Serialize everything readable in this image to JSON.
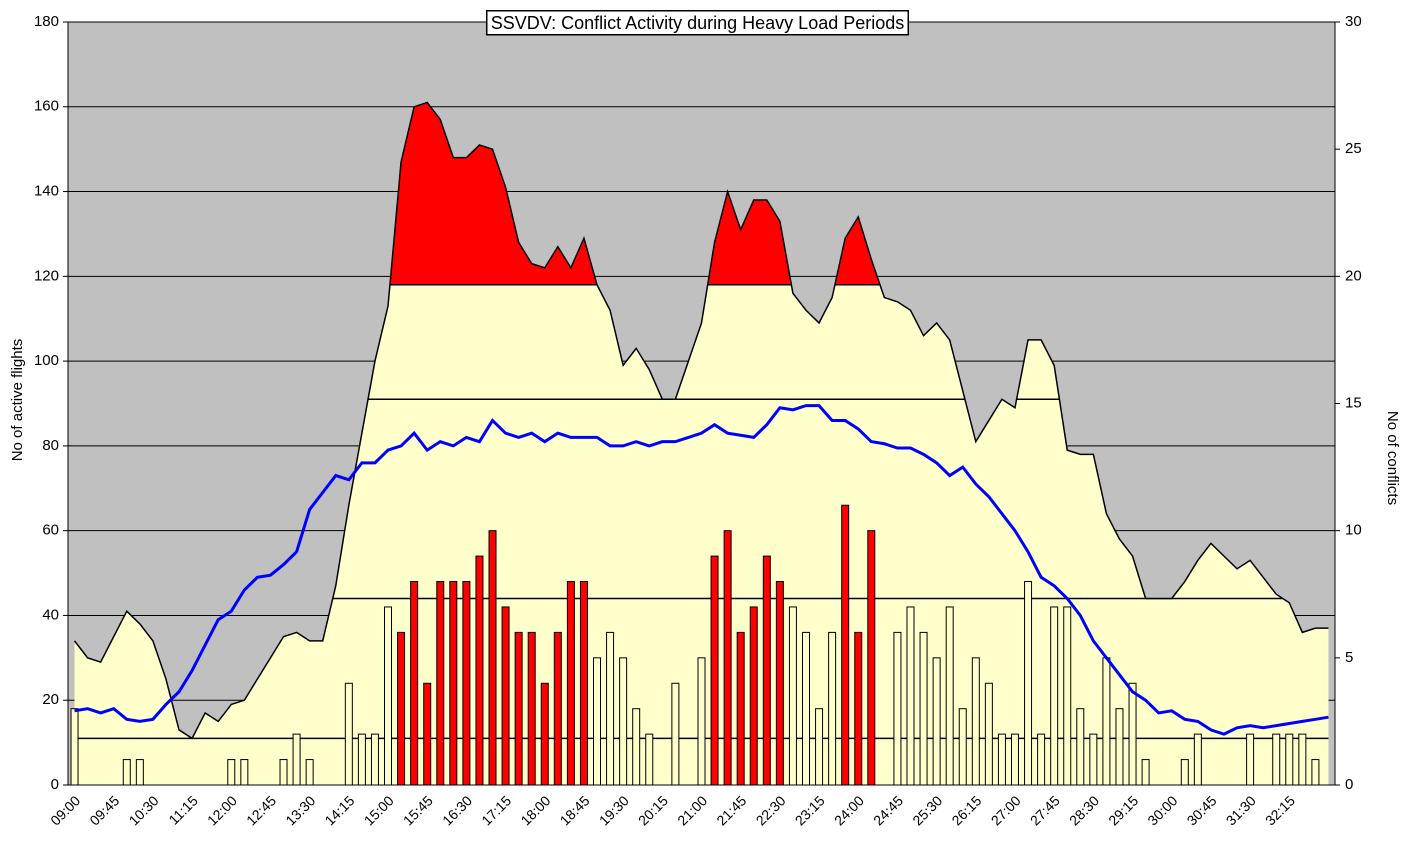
{
  "chart_data": {
    "type": "combo",
    "title": "SSVDV: Conflict Activity during Heavy Load Periods",
    "y_label": "No of active flights",
    "y2_label": "No of conflicts",
    "categories": [
      "09:00",
      null,
      null,
      "09:45",
      null,
      null,
      "10:30",
      null,
      null,
      "11:15",
      null,
      null,
      "12:00",
      null,
      null,
      "12:45",
      null,
      null,
      "13:30",
      null,
      null,
      "14:15",
      null,
      null,
      "15:00",
      null,
      null,
      "15:45",
      null,
      null,
      "16:30",
      null,
      null,
      "17:15",
      null,
      null,
      "18:00",
      null,
      null,
      "18:45",
      null,
      null,
      "19:30",
      null,
      null,
      "20:15",
      null,
      null,
      "21:00",
      null,
      null,
      "21:45",
      null,
      null,
      "22:30",
      null,
      null,
      "23:15",
      null,
      null,
      "24:00",
      null,
      null,
      "24:45",
      null,
      null,
      "25:30",
      null,
      null,
      "26:15",
      null,
      null,
      "27:00",
      null,
      null,
      "27:45",
      null,
      null,
      "28:30",
      null,
      null,
      "29:15",
      null,
      null,
      "30:00",
      null,
      null,
      "30:45",
      null,
      null,
      "31:30",
      null,
      null,
      "32:15",
      null,
      null,
      null
    ],
    "ylim": [
      0,
      180
    ],
    "yticks": [
      0,
      20,
      40,
      60,
      80,
      100,
      120,
      140,
      160,
      180
    ],
    "y2lim": [
      0,
      30
    ],
    "y2ticks": [
      0,
      5,
      10,
      15,
      20,
      25,
      30
    ],
    "grid": true,
    "plot_background": "#c0c0c0",
    "levels": [
      11,
      44,
      91,
      118
    ],
    "highlight_color": "#ff0000",
    "series": [
      {
        "type": "area",
        "color": "#ffffcc",
        "values": [
          34,
          30,
          29,
          35,
          41,
          38,
          34,
          25,
          13,
          11,
          17,
          15,
          19,
          20,
          25,
          30,
          35,
          36,
          34,
          34,
          47,
          66,
          83,
          100,
          113,
          147,
          160,
          161,
          157,
          148,
          148,
          151,
          150,
          141,
          128,
          123,
          122,
          127,
          122,
          129,
          118,
          112,
          99,
          103,
          98,
          91,
          91,
          100,
          109,
          128,
          140,
          131,
          138,
          138,
          133,
          116,
          112,
          109,
          115,
          129,
          134,
          124,
          115,
          114,
          112,
          106,
          109,
          105,
          93,
          81,
          86,
          91,
          89,
          105,
          105,
          99,
          79,
          78,
          78,
          64,
          58,
          54,
          44,
          44,
          44,
          48,
          53,
          57,
          54,
          51,
          53,
          49,
          45,
          43,
          36,
          37,
          37
        ]
      },
      {
        "type": "bar",
        "axis": "y2",
        "color": "#ffffcc",
        "values": [
          3,
          0,
          0,
          0,
          1,
          1,
          0,
          0,
          0,
          0,
          0,
          0,
          1,
          1,
          0,
          0,
          1,
          2,
          1,
          0,
          0,
          4,
          2,
          2,
          7,
          6,
          8,
          4,
          8,
          8,
          8,
          9,
          10,
          7,
          6,
          6,
          4,
          6,
          8,
          8,
          5,
          6,
          5,
          3,
          2,
          0,
          4,
          0,
          5,
          9,
          10,
          6,
          7,
          9,
          8,
          7,
          6,
          3,
          6,
          11,
          6,
          10,
          0,
          6,
          7,
          6,
          5,
          7,
          3,
          5,
          4,
          2,
          2,
          8,
          2,
          7,
          7,
          3,
          2,
          5,
          3,
          4,
          1,
          0,
          0,
          1,
          2,
          0,
          0,
          0,
          2,
          0,
          2,
          2,
          2,
          1,
          0
        ]
      },
      {
        "type": "line",
        "color": "#0000ff",
        "values": [
          17.5,
          18,
          17,
          18,
          15.5,
          15,
          15.5,
          19,
          22,
          27,
          33,
          39,
          41,
          46,
          49,
          49.5,
          52,
          55,
          65,
          69,
          73,
          72,
          76,
          76,
          79,
          80,
          83,
          79,
          81,
          80,
          82,
          81,
          86,
          83,
          82,
          83,
          81,
          83,
          82,
          82,
          82,
          80,
          80,
          81,
          80,
          81,
          81,
          82,
          83,
          85,
          83,
          82.5,
          82,
          85,
          89,
          88.5,
          89.5,
          89.5,
          86,
          86,
          84,
          81,
          80.5,
          79.5,
          79.5,
          78,
          76,
          73,
          75,
          71,
          68,
          64,
          60,
          55,
          49,
          47,
          44,
          40,
          34,
          30,
          26,
          22,
          20,
          17,
          17.5,
          15.5,
          15,
          13,
          12,
          13.5,
          14,
          13.5,
          14,
          14.5,
          15,
          15.5,
          16
        ]
      }
    ]
  }
}
